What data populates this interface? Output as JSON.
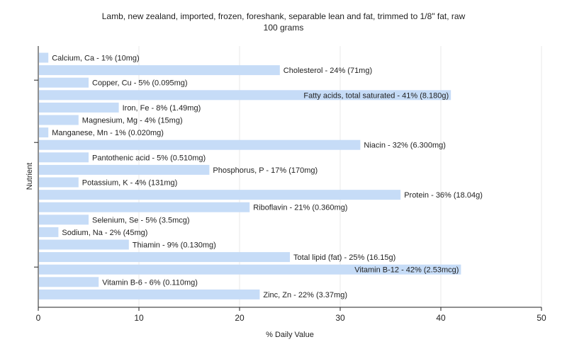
{
  "chart_data": {
    "type": "bar",
    "orientation": "horizontal",
    "title": "Lamb, new zealand, imported, frozen, foreshank, separable lean and fat, trimmed to 1/8\" fat, raw",
    "subtitle": "100 grams",
    "xlabel": "% Daily Value",
    "ylabel": "Nutrient",
    "xlim": [
      0,
      50
    ],
    "xticks": [
      0,
      10,
      20,
      30,
      40,
      50
    ],
    "grid": true,
    "bar_color": "#c6dcf7",
    "categories": [
      "Calcium, Ca",
      "Cholesterol",
      "Copper, Cu",
      "Fatty acids, total saturated",
      "Iron, Fe",
      "Magnesium, Mg",
      "Manganese, Mn",
      "Niacin",
      "Pantothenic acid",
      "Phosphorus, P",
      "Potassium, K",
      "Protein",
      "Riboflavin",
      "Selenium, Se",
      "Sodium, Na",
      "Thiamin",
      "Total lipid (fat)",
      "Vitamin B-12",
      "Vitamin B-6",
      "Zinc, Zn"
    ],
    "values": [
      1,
      24,
      5,
      41,
      8,
      4,
      1,
      32,
      5,
      17,
      4,
      36,
      21,
      5,
      2,
      9,
      25,
      42,
      6,
      22
    ],
    "labels": [
      "Calcium, Ca - 1% (10mg)",
      "Cholesterol - 24% (71mg)",
      "Copper, Cu - 5% (0.095mg)",
      "Fatty acids, total saturated - 41% (8.180g)",
      "Iron, Fe - 8% (1.49mg)",
      "Magnesium, Mg - 4% (15mg)",
      "Manganese, Mn - 1% (0.020mg)",
      "Niacin - 32% (6.300mg)",
      "Pantothenic acid - 5% (0.510mg)",
      "Phosphorus, P - 17% (170mg)",
      "Potassium, K - 4% (131mg)",
      "Protein - 36% (18.04g)",
      "Riboflavin - 21% (0.360mg)",
      "Selenium, Se - 5% (3.5mcg)",
      "Sodium, Na - 2% (45mg)",
      "Thiamin - 9% (0.130mg)",
      "Total lipid (fat) - 25% (16.15g)",
      "Vitamin B-12 - 42% (2.53mcg)",
      "Vitamin B-6 - 6% (0.110mg)",
      "Zinc, Zn - 22% (3.37mg)"
    ]
  }
}
